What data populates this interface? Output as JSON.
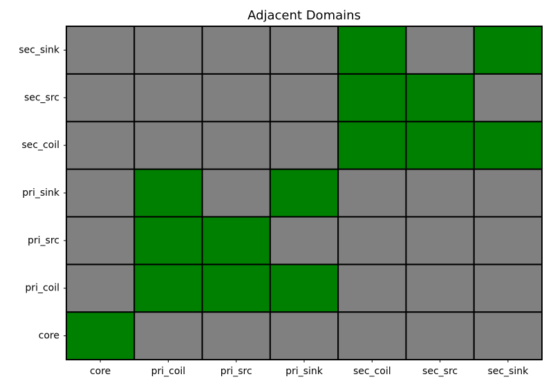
{
  "chart_data": {
    "type": "heatmap",
    "title": "Adjacent Domains",
    "x_categories": [
      "core",
      "pri_coil",
      "pri_src",
      "pri_sink",
      "sec_coil",
      "sec_src",
      "sec_sink"
    ],
    "y_categories": [
      "core",
      "pri_coil",
      "pri_src",
      "pri_sink",
      "sec_coil",
      "sec_src",
      "sec_sink"
    ],
    "values": [
      [
        1,
        0,
        0,
        0,
        0,
        0,
        0
      ],
      [
        0,
        1,
        1,
        1,
        0,
        0,
        0
      ],
      [
        0,
        1,
        1,
        0,
        0,
        0,
        0
      ],
      [
        0,
        1,
        0,
        1,
        0,
        0,
        0
      ],
      [
        0,
        0,
        0,
        0,
        1,
        1,
        1
      ],
      [
        0,
        0,
        0,
        0,
        1,
        1,
        0
      ],
      [
        0,
        0,
        0,
        0,
        1,
        0,
        1
      ]
    ],
    "colors": [
      "#808080",
      "#008000"
    ]
  }
}
